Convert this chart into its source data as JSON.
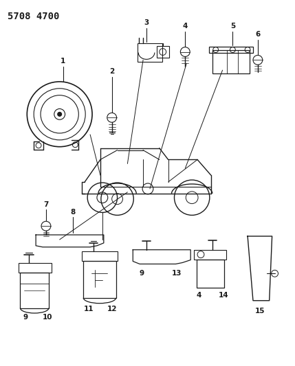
{
  "title": "5708 4700",
  "background_color": "#ffffff",
  "line_color": "#1a1a1a",
  "title_fontsize": 10,
  "label_fontsize": 7.5,
  "fig_width": 4.29,
  "fig_height": 5.33,
  "dpi": 100
}
